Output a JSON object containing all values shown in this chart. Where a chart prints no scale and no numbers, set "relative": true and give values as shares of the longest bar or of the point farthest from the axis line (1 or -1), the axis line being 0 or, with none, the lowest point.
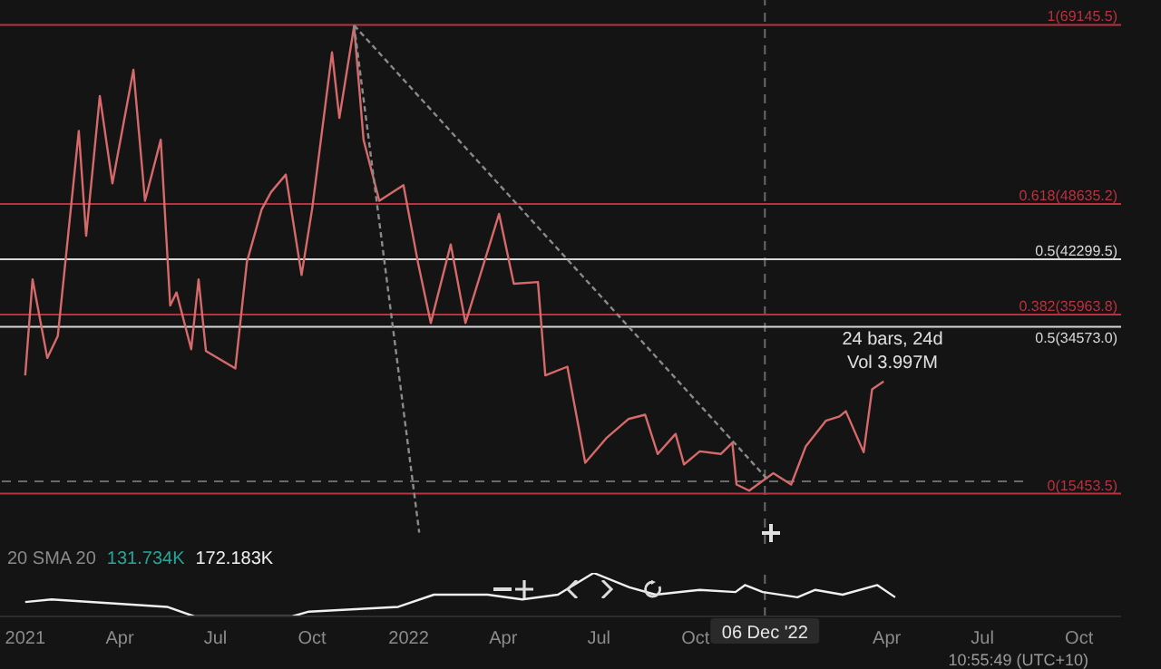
{
  "chart_data": [
    {
      "type": "line",
      "xlim": [
        "2020-12-08",
        "2023-11-10"
      ],
      "ylim": [
        9700,
        72000
      ],
      "tick_labels": false,
      "series": [
        {
          "color": "#d66a6a",
          "x": [
            "2021-01-01",
            "2021-01-08",
            "2021-01-22",
            "2021-02-01",
            "2021-02-21",
            "2021-02-28",
            "2021-03-13",
            "2021-03-25",
            "2021-04-14",
            "2021-04-25",
            "2021-05-10",
            "2021-05-19",
            "2021-05-25",
            "2021-06-08",
            "2021-06-15",
            "2021-06-22",
            "2021-07-20",
            "2021-07-31",
            "2021-08-14",
            "2021-08-23",
            "2021-09-06",
            "2021-09-21",
            "2021-10-01",
            "2021-10-20",
            "2021-10-27",
            "2021-11-10",
            "2021-11-19",
            "2021-12-04",
            "2021-12-27",
            "2022-01-10",
            "2022-01-22",
            "2022-02-10",
            "2022-02-24",
            "2022-03-28",
            "2022-04-11",
            "2022-05-04",
            "2022-05-11",
            "2022-06-01",
            "2022-06-18",
            "2022-07-08",
            "2022-07-29",
            "2022-08-14",
            "2022-08-26",
            "2022-09-12",
            "2022-09-20",
            "2022-10-05",
            "2022-10-25",
            "2022-11-05",
            "2022-11-09",
            "2022-11-21",
            "2022-12-14",
            "2022-12-31",
            "2023-01-14",
            "2023-02-02",
            "2023-02-15",
            "2023-02-21",
            "2023-03-10",
            "2023-03-18",
            "2023-03-29"
          ],
          "values": [
            29000,
            40000,
            31000,
            33500,
            57000,
            45000,
            61000,
            51000,
            64000,
            49000,
            56000,
            37000,
            38500,
            32000,
            40000,
            31800,
            29800,
            42000,
            48000,
            50000,
            52000,
            40500,
            48000,
            66000,
            58500,
            69000,
            56000,
            49000,
            50800,
            41800,
            35000,
            44000,
            35000,
            47500,
            39500,
            39700,
            29000,
            30000,
            19000,
            21800,
            24000,
            24500,
            20000,
            22300,
            18800,
            20300,
            20000,
            21300,
            16500,
            15800,
            17800,
            16500,
            20900,
            23800,
            24300,
            24900,
            20200,
            27400,
            28300
          ]
        },
        {
          "color": "#8a8a8a",
          "line_style": "dashed",
          "x": [
            "2021-11-10",
            "2022-12-10"
          ],
          "values": [
            69100,
            16900
          ]
        },
        {
          "color": "#8a8a8a",
          "line_style": "dashed",
          "x": [
            "2021-11-10",
            "2022-01-11"
          ],
          "values": [
            69100,
            11000
          ]
        }
      ],
      "ref_lines": [
        {
          "axis": "y",
          "value": 69145.5,
          "label": "1(69145.5)",
          "color": "#b8323f"
        },
        {
          "axis": "y",
          "value": 48635.2,
          "label": "0.618(48635.2)",
          "color": "#b8323f"
        },
        {
          "axis": "y",
          "value": 42299.5,
          "label": "0.5(42299.5)",
          "color": "#d8d8d8"
        },
        {
          "axis": "y",
          "value": 35963.8,
          "label": "0.382(35963.8)",
          "color": "#b8323f"
        },
        {
          "axis": "y",
          "value": 34573.0,
          "label": "0.5(34573.0)",
          "color": "#d8d8d8"
        },
        {
          "axis": "y",
          "value": 15453.5,
          "label": "0(15453.5)",
          "color": "#b8323f"
        },
        {
          "axis": "y",
          "value": 16870,
          "label": null,
          "color": "#6a6a6a",
          "line_style": "dashed"
        },
        {
          "axis": "x",
          "value": "2022-12-06",
          "label": null,
          "color": "#6a6a6a",
          "line_style": "dashed"
        }
      ],
      "annotations": [
        "24 bars, 24d",
        "Vol 3.997M"
      ]
    },
    {
      "type": "line",
      "relative": true,
      "xlim": [
        "2020-12-08",
        "2023-11-10"
      ],
      "tick_labels": "x",
      "xticks": [
        {
          "value": "2021-01-01",
          "label": "2021"
        },
        {
          "value": "2021-04-01",
          "label": "Apr"
        },
        {
          "value": "2021-07-01",
          "label": "Jul"
        },
        {
          "value": "2021-10-01",
          "label": "Oct"
        },
        {
          "value": "2022-01-01",
          "label": "2022"
        },
        {
          "value": "2022-04-01",
          "label": "Apr"
        },
        {
          "value": "2022-07-01",
          "label": "Jul"
        },
        {
          "value": "2022-10-01",
          "label": "Oct"
        },
        {
          "value": "2023-04-01",
          "label": "Apr"
        },
        {
          "value": "2023-07-01",
          "label": "Jul"
        },
        {
          "value": "2023-10-01",
          "label": "Oct"
        }
      ],
      "series": [
        {
          "color": "#f0f0f0",
          "x": [
            "2021-01-01",
            "2021-01-26",
            "2021-05-16",
            "2021-06-11",
            "2021-09-12",
            "2021-09-28",
            "2021-12-22",
            "2022-01-25",
            "2022-03-17",
            "2022-04-19",
            "2022-05-23",
            "2022-06-26",
            "2022-07-30",
            "2022-08-24",
            "2022-10-05",
            "2022-11-08",
            "2022-11-17",
            "2022-12-04",
            "2023-01-06",
            "2023-01-23",
            "2023-02-18",
            "2023-03-23",
            "2023-04-09"
          ],
          "values": [
            0.33,
            0.39,
            0.22,
            0,
            0,
            0.11,
            0.22,
            0.5,
            0.5,
            0.39,
            0.5,
            1,
            0.67,
            0.5,
            0.61,
            0.56,
            0.72,
            0.56,
            0.44,
            0.61,
            0.5,
            0.72,
            0.44
          ]
        }
      ],
      "ref_lines": [
        {
          "axis": "x",
          "value": "2022-12-06",
          "label": "06 Dec '22",
          "color": "#6a6a6a",
          "line_style": "dashed"
        }
      ],
      "annotations": [
        "20 SMA 20",
        "131.734K",
        "172.183K",
        "10:55:49 (UTC+10)"
      ]
    }
  ]
}
